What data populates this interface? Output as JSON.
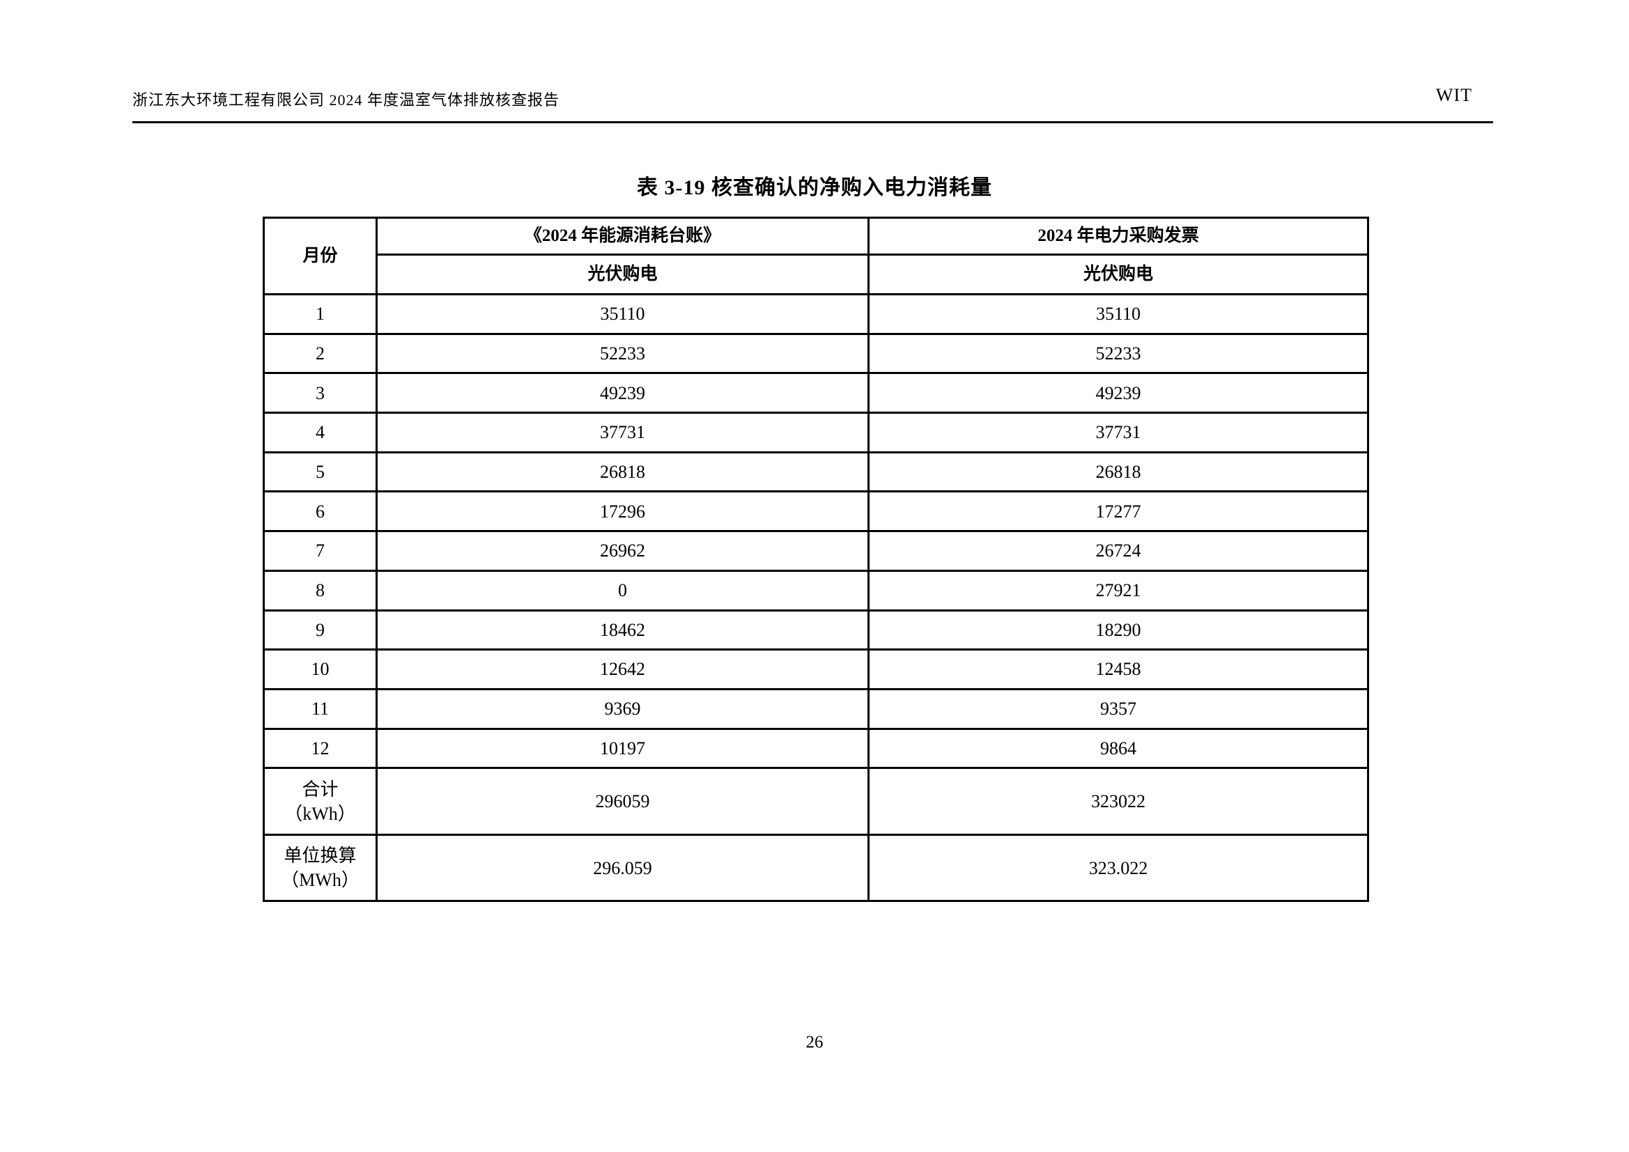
{
  "page_header": {
    "left": "浙江东大环境工程有限公司 2024 年度温室气体排放核查报告",
    "right": "WIT"
  },
  "table_title": "表 3-19 核查确认的净购入电力消耗量",
  "table": {
    "headers": {
      "month": "月份",
      "ledger_group": "《2024 年能源消耗台账》",
      "invoice_group": "2024 年电力采购发票",
      "ledger_sub": "光伏购电",
      "invoice_sub": "光伏购电"
    },
    "rows": [
      {
        "month": "1",
        "ledger": "35110",
        "invoice": "35110"
      },
      {
        "month": "2",
        "ledger": "52233",
        "invoice": "52233"
      },
      {
        "month": "3",
        "ledger": "49239",
        "invoice": "49239"
      },
      {
        "month": "4",
        "ledger": "37731",
        "invoice": "37731"
      },
      {
        "month": "5",
        "ledger": "26818",
        "invoice": "26818"
      },
      {
        "month": "6",
        "ledger": "17296",
        "invoice": "17277"
      },
      {
        "month": "7",
        "ledger": "26962",
        "invoice": "26724"
      },
      {
        "month": "8",
        "ledger": "0",
        "invoice": "27921"
      },
      {
        "month": "9",
        "ledger": "18462",
        "invoice": "18290"
      },
      {
        "month": "10",
        "ledger": "12642",
        "invoice": "12458"
      },
      {
        "month": "11",
        "ledger": "9369",
        "invoice": "9357"
      },
      {
        "month": "12",
        "ledger": "10197",
        "invoice": "9864"
      }
    ],
    "total": {
      "label_line1": "合计",
      "label_line2": "（kWh）",
      "ledger": "296059",
      "invoice": "323022"
    },
    "converted": {
      "label_line1": "单位换算",
      "label_line2": "（MWh）",
      "ledger": "296.059",
      "invoice": "323.022"
    }
  },
  "page_number": "26"
}
